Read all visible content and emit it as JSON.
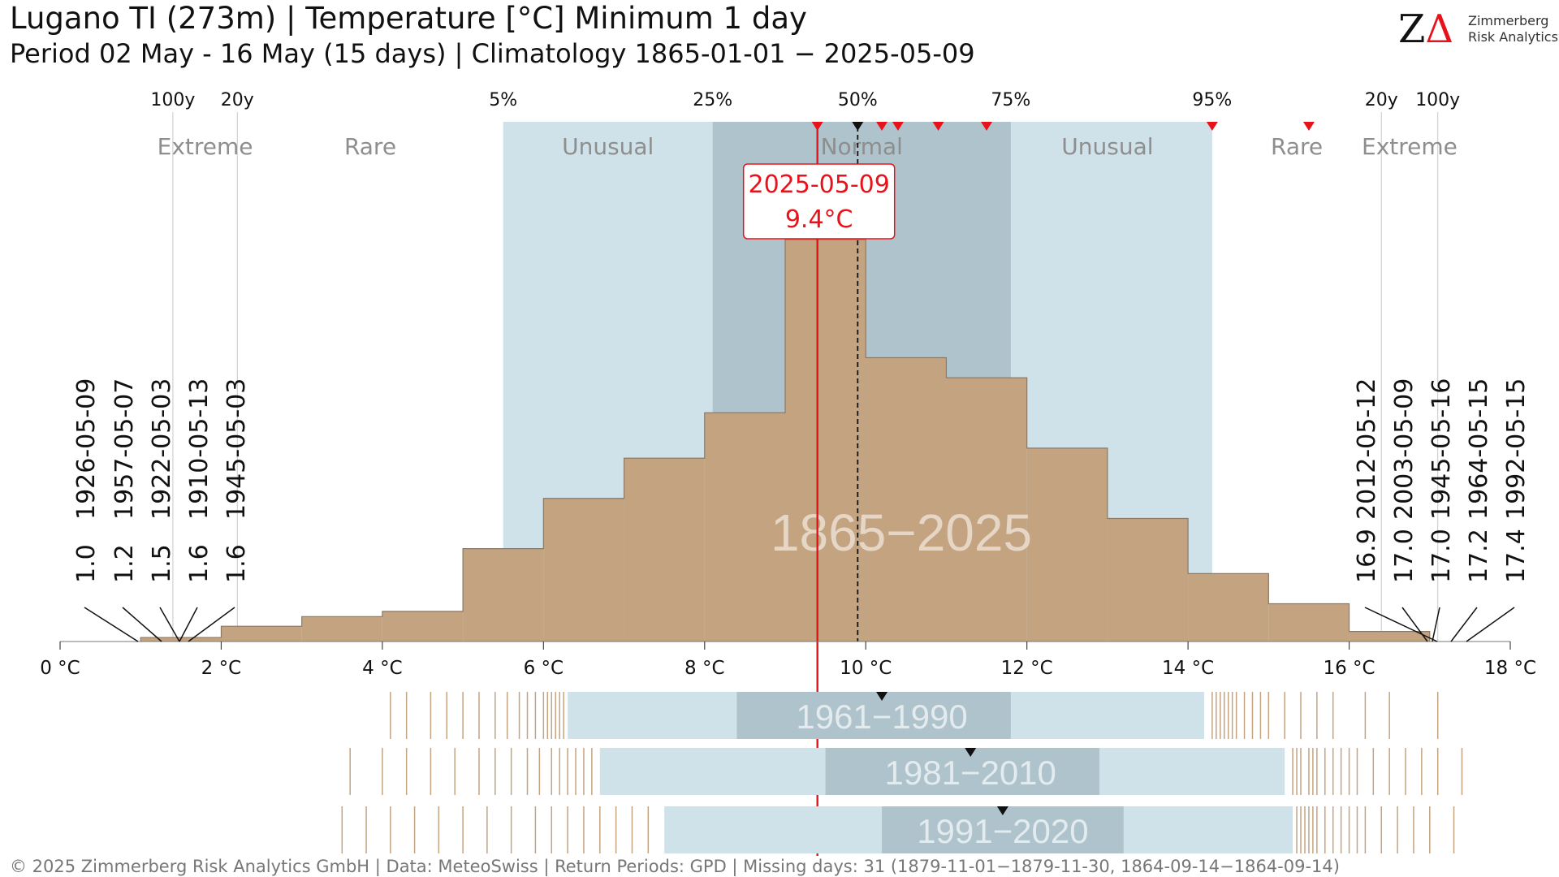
{
  "header": {
    "title": "Lugano  TI (273m) | Temperature [°C] Minimum 1 day",
    "subtitle": "Period 02 May - 16 May (15 days) | Climatology 1865-01-01 − 2025-05-09"
  },
  "logo": {
    "mark_left": "Z",
    "mark_right": "Δ",
    "line1": "Zimmerberg",
    "line2": "Risk Analytics"
  },
  "footer": {
    "text": "©  2025 Zimmerberg Risk Analytics GmbH | Data: MeteoSwiss | Return Periods: GPD | Missing days: 31 (1879-11-01−1879-11-30, 1864-09-14−1864-09-14)"
  },
  "colors": {
    "histogram_fill": "#c4a381",
    "histogram_edge": "#8c7a65",
    "unusual_band": "#cfe2e9",
    "normal_band": "#aec3cb",
    "current_line": "#e8121b",
    "median_line": "#111111"
  },
  "chart_data": {
    "type": "histogram",
    "main_period_label": "1865−2025",
    "x_axis": {
      "min": 0,
      "max": 18,
      "ticks": [
        0,
        2,
        4,
        6,
        8,
        10,
        12,
        14,
        16,
        18
      ],
      "tick_labels": [
        "0 °C",
        "2 °C",
        "4 °C",
        "6 °C",
        "8 °C",
        "10 °C",
        "12 °C",
        "14 °C",
        "16 °C",
        "18 °C"
      ]
    },
    "bins": [
      {
        "x0": 1,
        "x1": 2,
        "height": 1
      },
      {
        "x0": 2,
        "x1": 3,
        "height": 3.8
      },
      {
        "x0": 3,
        "x1": 4,
        "height": 6.2
      },
      {
        "x0": 4,
        "x1": 5,
        "height": 7.5
      },
      {
        "x0": 5,
        "x1": 6,
        "height": 23.1
      },
      {
        "x0": 6,
        "x1": 7,
        "height": 35.6
      },
      {
        "x0": 7,
        "x1": 8,
        "height": 45.6
      },
      {
        "x0": 8,
        "x1": 9,
        "height": 56.9
      },
      {
        "x0": 9,
        "x1": 10,
        "height": 100
      },
      {
        "x0": 10,
        "x1": 11,
        "height": 70.6
      },
      {
        "x0": 11,
        "x1": 12,
        "height": 65.6
      },
      {
        "x0": 12,
        "x1": 13,
        "height": 48.1
      },
      {
        "x0": 13,
        "x1": 14,
        "height": 30.6
      },
      {
        "x0": 14,
        "x1": 15,
        "height": 16.9
      },
      {
        "x0": 15,
        "x1": 16,
        "height": 9.4
      },
      {
        "x0": 16,
        "x1": 17,
        "height": 2.5
      }
    ],
    "percentile_markers": [
      {
        "label": "100y",
        "x": 1.4
      },
      {
        "label": "20y",
        "x": 2.2
      },
      {
        "label": "5%",
        "x": 5.5
      },
      {
        "label": "25%",
        "x": 8.1
      },
      {
        "label": "50%",
        "x": 9.9
      },
      {
        "label": "75%",
        "x": 11.8
      },
      {
        "label": "95%",
        "x": 14.3
      },
      {
        "label": "20y",
        "x": 16.4
      },
      {
        "label": "100y",
        "x": 17.1
      }
    ],
    "zones": [
      {
        "label": "Extreme",
        "x0": 0,
        "x1": 2.2,
        "label_x": 1.8
      },
      {
        "label": "Rare",
        "x0": 2.2,
        "x1": 5.5,
        "label_x": 3.85
      },
      {
        "label": "Unusual",
        "x0": 5.5,
        "x1": 8.1,
        "label_x": 6.8
      },
      {
        "label": "Normal",
        "x0": 8.1,
        "x1": 11.8,
        "label_x": 9.95
      },
      {
        "label": "Unusual",
        "x0": 11.8,
        "x1": 14.3,
        "label_x": 13.0
      },
      {
        "label": "Rare",
        "x0": 14.3,
        "x1": 16.4,
        "label_x": 15.35
      },
      {
        "label": "Extreme",
        "x0": 16.4,
        "x1": 18,
        "label_x": 16.75
      }
    ],
    "recent_values": [
      9.4,
      10.2,
      10.4,
      10.9,
      11.5,
      14.3,
      15.5
    ],
    "median": 9.9,
    "current": {
      "date": "2025-05-09",
      "value": 9.4,
      "value_label": "9.4°C"
    },
    "coldest_records": [
      {
        "value": "1.0",
        "date": "1926-05-09"
      },
      {
        "value": "1.2",
        "date": "1957-05-07"
      },
      {
        "value": "1.5",
        "date": "1922-05-03"
      },
      {
        "value": "1.6",
        "date": "1910-05-13"
      },
      {
        "value": "1.6",
        "date": "1945-05-03"
      }
    ],
    "warmest_records": [
      {
        "value": "16.9",
        "date": "2012-05-12"
      },
      {
        "value": "17.0",
        "date": "2003-05-09"
      },
      {
        "value": "17.0",
        "date": "1945-05-16"
      },
      {
        "value": "17.2",
        "date": "1964-05-15"
      },
      {
        "value": "17.4",
        "date": "1992-05-15"
      }
    ],
    "reference_periods": [
      {
        "label": "1961−1990",
        "p5": 6.3,
        "p25": 8.4,
        "p50": 10.2,
        "p75": 11.8,
        "p95": 14.2,
        "cold_extremes": [
          4.1,
          4.3,
          4.6,
          4.8,
          5.0,
          5.2,
          5.4,
          5.55,
          5.7,
          5.8,
          5.9,
          6.0,
          6.05,
          6.1,
          6.15,
          6.2,
          6.25
        ],
        "warm_extremes": [
          14.3,
          14.35,
          14.4,
          14.45,
          14.5,
          14.55,
          14.6,
          14.7,
          14.8,
          14.9,
          15.0,
          15.2,
          15.4,
          15.6,
          15.8,
          16.2,
          16.5,
          17.1
        ]
      },
      {
        "label": "1981−2010",
        "p5": 6.7,
        "p25": 9.5,
        "p50": 11.3,
        "p75": 12.9,
        "p95": 15.2,
        "cold_extremes": [
          3.6,
          4.0,
          4.3,
          4.6,
          4.9,
          5.2,
          5.4,
          5.6,
          5.8,
          5.95,
          6.1,
          6.2,
          6.3,
          6.4,
          6.5,
          6.6
        ],
        "warm_extremes": [
          15.3,
          15.35,
          15.4,
          15.5,
          15.55,
          15.6,
          15.7,
          15.8,
          15.9,
          16.0,
          16.1,
          16.3,
          16.5,
          16.7,
          16.9,
          17.1,
          17.4
        ]
      },
      {
        "label": "1991−2020",
        "p5": 7.5,
        "p25": 10.2,
        "p50": 11.7,
        "p75": 13.2,
        "p95": 15.3,
        "cold_extremes": [
          3.5,
          3.8,
          4.1,
          4.4,
          4.7,
          5.0,
          5.3,
          5.6,
          5.9,
          6.1,
          6.3,
          6.5,
          6.7,
          6.9,
          7.1,
          7.3
        ],
        "warm_extremes": [
          15.35,
          15.4,
          15.45,
          15.5,
          15.55,
          15.6,
          15.7,
          15.8,
          15.9,
          16.0,
          16.1,
          16.2,
          16.4,
          16.6,
          16.8,
          17.0,
          17.3
        ]
      }
    ]
  }
}
